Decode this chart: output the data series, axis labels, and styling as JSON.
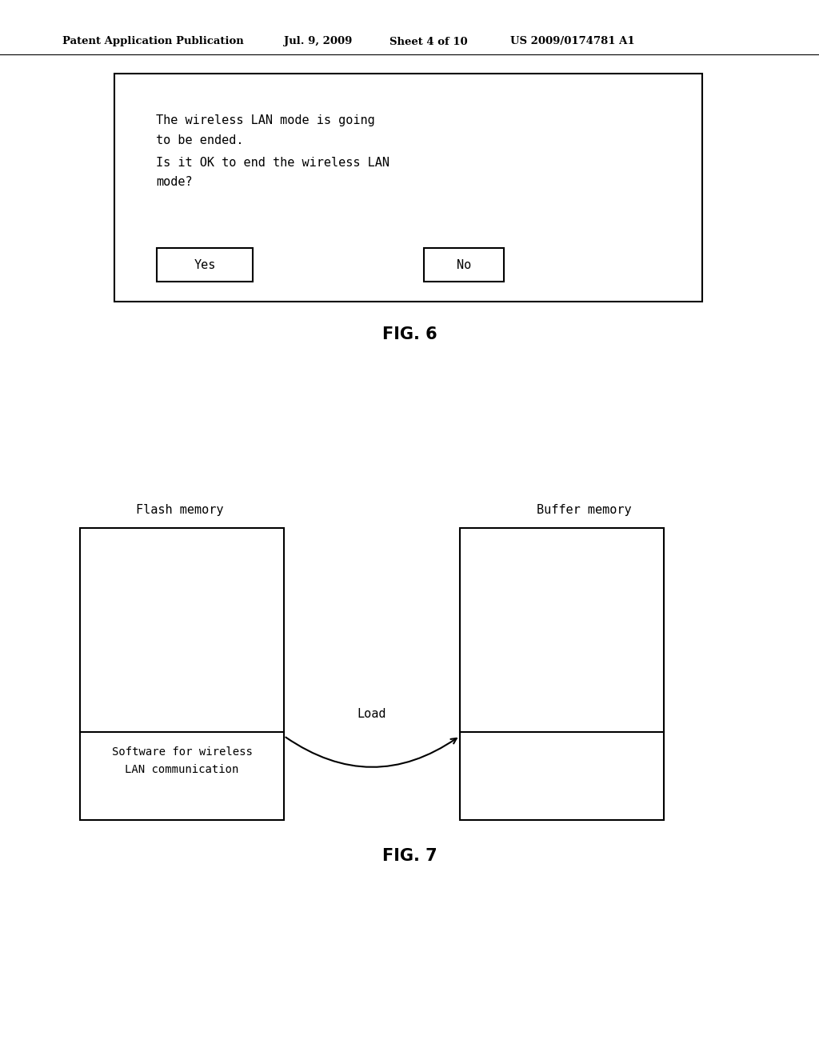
{
  "bg_color": "#ffffff",
  "header_text": "Patent Application Publication",
  "header_date": "Jul. 9, 2009",
  "header_sheet": "Sheet 4 of 10",
  "header_patent": "US 2009/0174781 A1",
  "fig6_label": "FIG. 6",
  "fig7_label": "FIG. 7",
  "fig6": {
    "line1": "The wireless LAN mode is going",
    "line2": "to be ended.",
    "line3": "Is it OK to end the wireless LAN",
    "line4": "mode?",
    "btn_yes_label": "Yes",
    "btn_no_label": "No"
  },
  "fig7": {
    "flash_label": "Flash memory",
    "buffer_label": "Buffer memory",
    "software_label_line1": "Software for wireless",
    "software_label_line2": "LAN communication",
    "load_label": "Load"
  }
}
